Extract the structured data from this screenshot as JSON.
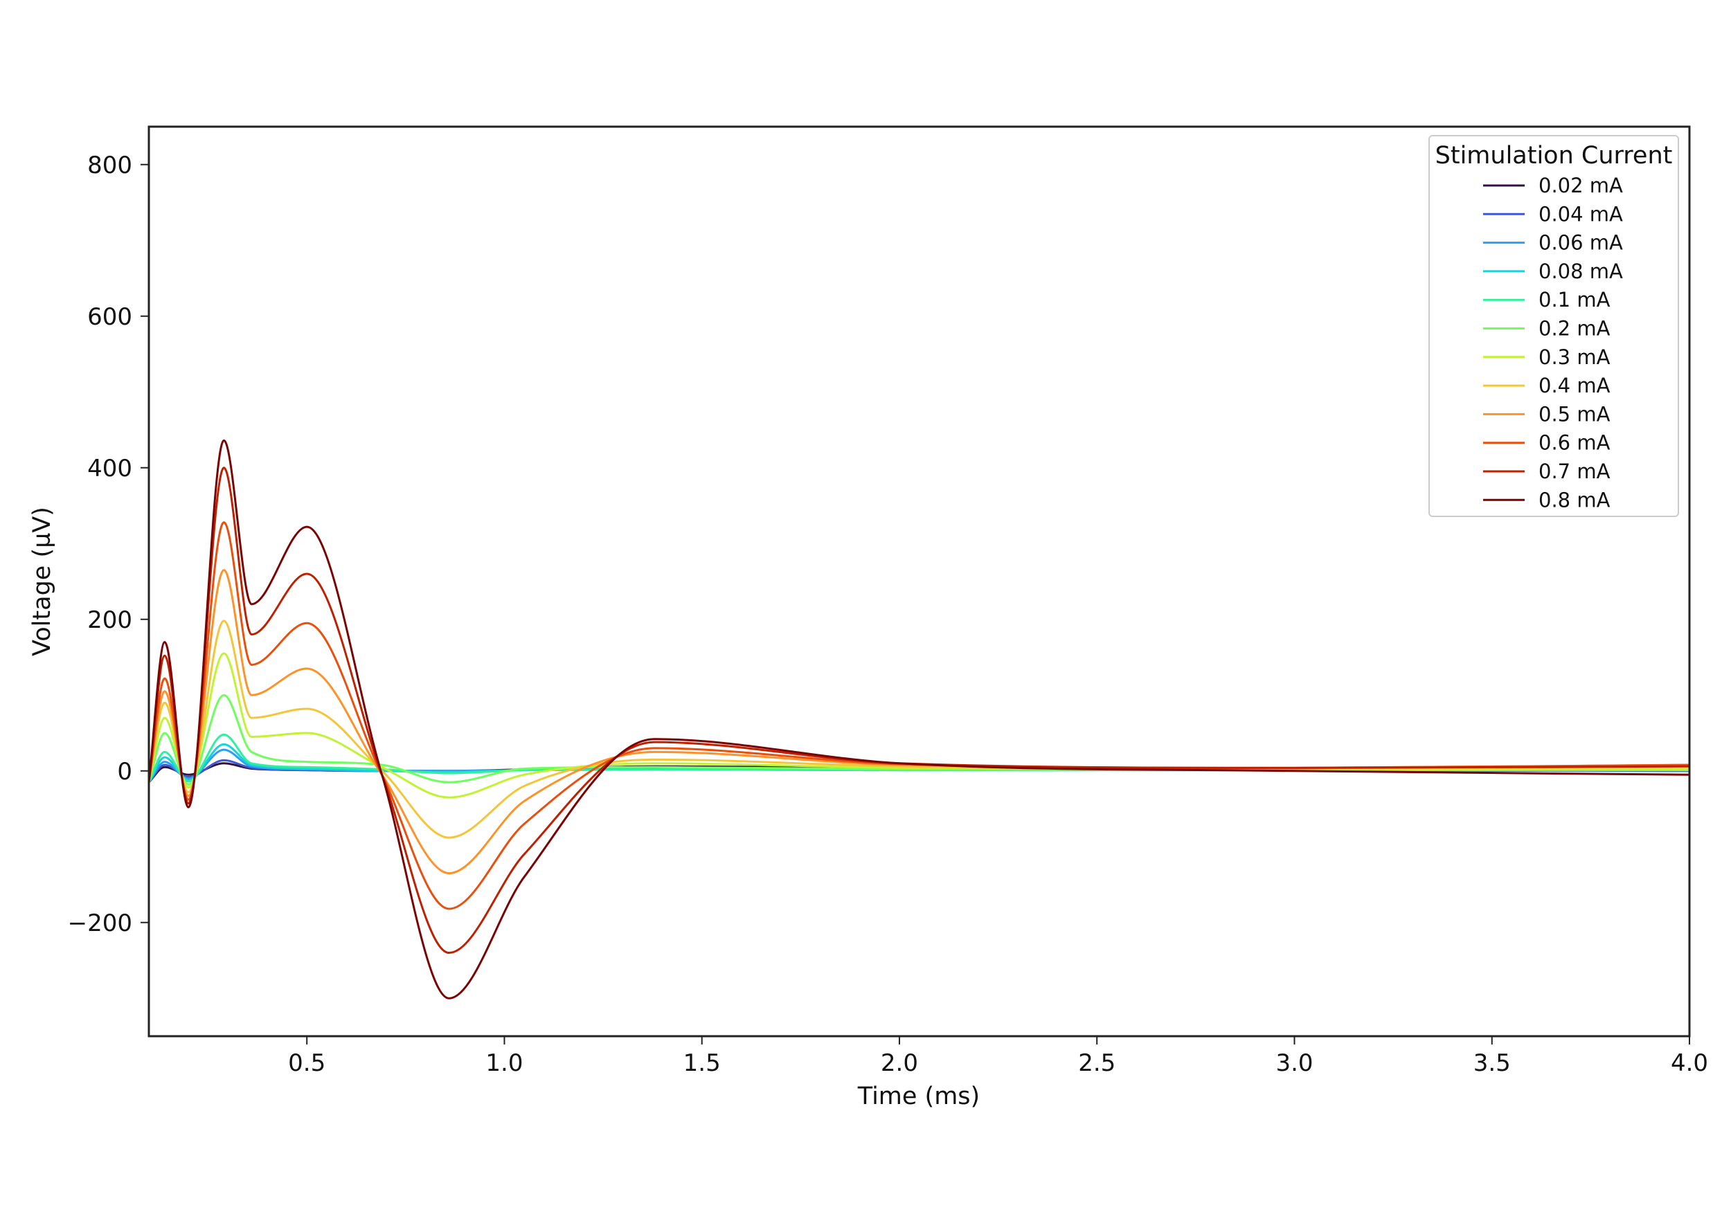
{
  "chart_data": {
    "type": "line",
    "title": "",
    "xlabel": "Time (ms)",
    "ylabel": "Voltage (µV)",
    "xlim": [
      0.1,
      4.0
    ],
    "ylim": [
      -350,
      850
    ],
    "x_ticks": [
      0.5,
      1.0,
      1.5,
      2.0,
      2.5,
      3.0,
      3.5,
      4.0
    ],
    "x_tick_labels": [
      "0.5",
      "1.0",
      "1.5",
      "2.0",
      "2.5",
      "3.0",
      "3.5",
      "4.0"
    ],
    "y_ticks": [
      -200,
      0,
      200,
      400,
      600,
      800
    ],
    "y_tick_labels": [
      "−200",
      "0",
      "200",
      "400",
      "600",
      "800"
    ],
    "grid": false,
    "legend": {
      "title": "Stimulation Current",
      "placement": "top-right"
    },
    "x": [
      0.1,
      0.14,
      0.2,
      0.29,
      0.36,
      0.5,
      0.69,
      0.86,
      1.05,
      1.38,
      2.0,
      3.0,
      4.0
    ],
    "series": [
      {
        "name": "0.02 mA",
        "color": "#30123b",
        "values": [
          -15,
          5,
          -5,
          10,
          3,
          1,
          0,
          0,
          2,
          6,
          4,
          1,
          0
        ]
      },
      {
        "name": "0.04 mA",
        "color": "#3e56d1",
        "values": [
          -15,
          8,
          -8,
          14,
          4,
          1,
          0,
          0,
          1,
          3,
          2,
          1,
          0
        ]
      },
      {
        "name": "0.06 mA",
        "color": "#2b9ef5",
        "values": [
          -15,
          12,
          -10,
          28,
          6,
          2,
          0,
          0,
          1,
          2,
          1,
          1,
          1
        ]
      },
      {
        "name": "0.08 mA",
        "color": "#19d2d8",
        "values": [
          -15,
          18,
          -12,
          35,
          8,
          3,
          0,
          -1,
          1,
          2,
          1,
          1,
          1
        ]
      },
      {
        "name": "0.1 mA",
        "color": "#2ef19c",
        "values": [
          -15,
          25,
          -14,
          48,
          10,
          5,
          2,
          -3,
          1,
          2,
          1,
          1,
          1
        ]
      },
      {
        "name": "0.2 mA",
        "color": "#70fe5c",
        "values": [
          -15,
          50,
          -18,
          100,
          25,
          12,
          8,
          -15,
          3,
          5,
          2,
          1,
          1
        ]
      },
      {
        "name": "0.3 mA",
        "color": "#c2f234",
        "values": [
          -15,
          70,
          -22,
          155,
          45,
          50,
          5,
          -35,
          -5,
          10,
          4,
          2,
          2
        ]
      },
      {
        "name": "0.4 mA",
        "color": "#f3c63a",
        "values": [
          -15,
          90,
          -28,
          198,
          70,
          82,
          0,
          -88,
          -20,
          15,
          6,
          3,
          5
        ]
      },
      {
        "name": "0.5 mA",
        "color": "#fe922a",
        "values": [
          -15,
          105,
          -33,
          265,
          100,
          135,
          -5,
          -135,
          -40,
          25,
          8,
          4,
          8
        ]
      },
      {
        "name": "0.6 mA",
        "color": "#ea4f0d",
        "values": [
          -15,
          122,
          -38,
          328,
          140,
          195,
          -5,
          -182,
          -70,
          30,
          9,
          4,
          8
        ]
      },
      {
        "name": "0.7 mA",
        "color": "#be2102",
        "values": [
          -15,
          152,
          -43,
          400,
          180,
          260,
          -5,
          -240,
          -110,
          38,
          10,
          4,
          6
        ]
      },
      {
        "name": "0.8 mA",
        "color": "#7a0403",
        "values": [
          -15,
          170,
          -48,
          436,
          220,
          322,
          -5,
          -300,
          -140,
          42,
          10,
          0,
          -5
        ]
      }
    ]
  }
}
